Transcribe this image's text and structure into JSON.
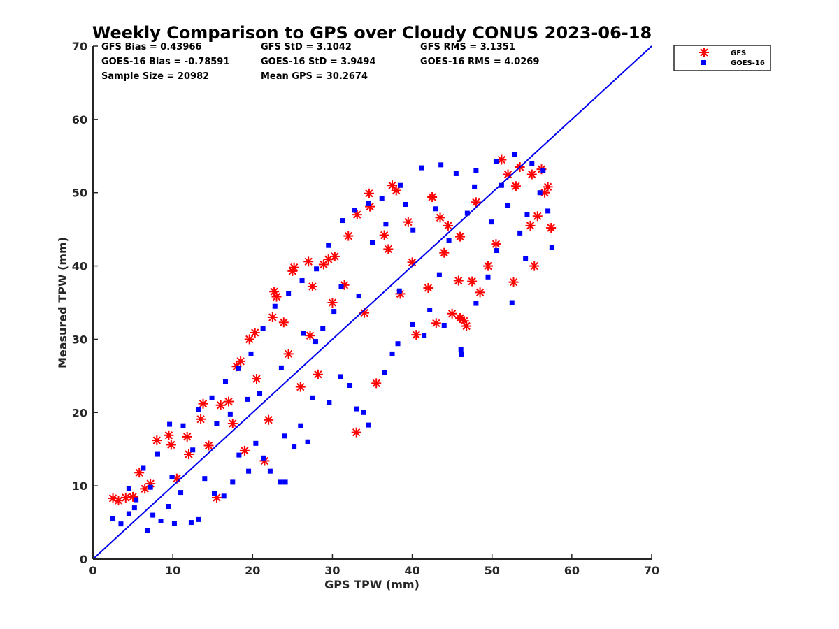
{
  "chart_data": {
    "type": "scatter",
    "title": "Weekly Comparison to GPS over Cloudy CONUS 2023-06-18",
    "xlabel": "GPS TPW (mm)",
    "ylabel": "Measured TPW (mm)",
    "xlim": [
      0,
      70
    ],
    "ylim": [
      0,
      70
    ],
    "x_ticks": [
      0,
      10,
      20,
      30,
      40,
      50,
      60,
      70
    ],
    "y_ticks": [
      0,
      10,
      20,
      30,
      40,
      50,
      60,
      70
    ],
    "grid": false,
    "legend_position": "outside-top-right",
    "reference_line": {
      "x": [
        0,
        70
      ],
      "y": [
        0,
        70
      ],
      "color": "#0000ee"
    },
    "stats": [
      [
        "GFS Bias = 0.43966",
        "GFS StD = 3.1042",
        "GFS RMS = 3.1351"
      ],
      [
        "GOES-16 Bias = -0.78591",
        "GOES-16 StD = 3.9494",
        "GOES-16 RMS = 4.0269"
      ],
      [
        "Sample Size = 20982",
        "Mean GPS = 30.2674",
        ""
      ]
    ],
    "series": [
      {
        "name": "GFS",
        "marker": "asterisk",
        "color": "#ff0000",
        "points": [
          [
            2.5,
            8.3
          ],
          [
            3.2,
            8.0
          ],
          [
            4.1,
            8.4
          ],
          [
            5.0,
            8.5
          ],
          [
            5.8,
            11.8
          ],
          [
            6.5,
            9.6
          ],
          [
            7.2,
            10.3
          ],
          [
            8.0,
            16.2
          ],
          [
            9.5,
            16.9
          ],
          [
            9.8,
            15.6
          ],
          [
            11.8,
            16.7
          ],
          [
            13.5,
            19.1
          ],
          [
            13.8,
            21.2
          ],
          [
            15.5,
            8.4
          ],
          [
            17.0,
            21.5
          ],
          [
            18.0,
            26.3
          ],
          [
            18.5,
            27.0
          ],
          [
            19.6,
            30.0
          ],
          [
            20.3,
            30.9
          ],
          [
            21.5,
            13.4
          ],
          [
            22.5,
            33.0
          ],
          [
            22.7,
            36.5
          ],
          [
            23.0,
            35.8
          ],
          [
            23.9,
            32.3
          ],
          [
            25.2,
            39.8
          ],
          [
            25.0,
            39.3
          ],
          [
            27.0,
            40.6
          ],
          [
            27.5,
            37.2
          ],
          [
            28.9,
            40.2
          ],
          [
            29.5,
            40.9
          ],
          [
            30.3,
            41.3
          ],
          [
            32.0,
            44.1
          ],
          [
            33.0,
            17.3
          ],
          [
            33.1,
            47.0
          ],
          [
            34.6,
            49.9
          ],
          [
            34.7,
            48.1
          ],
          [
            35.5,
            24.0
          ],
          [
            37.5,
            51.0
          ],
          [
            38.0,
            50.3
          ],
          [
            39.5,
            46.0
          ],
          [
            40.5,
            30.6
          ],
          [
            42.0,
            37.0
          ],
          [
            43.0,
            32.2
          ],
          [
            44.5,
            45.5
          ],
          [
            45.0,
            33.5
          ],
          [
            45.8,
            38.0
          ],
          [
            46.0,
            32.9
          ],
          [
            46.5,
            32.5
          ],
          [
            46.8,
            31.8
          ],
          [
            47.5,
            37.9
          ],
          [
            48.5,
            36.4
          ],
          [
            49.5,
            40.0
          ],
          [
            51.2,
            54.5
          ],
          [
            52.7,
            37.8
          ],
          [
            53.5,
            53.5
          ],
          [
            54.8,
            45.5
          ],
          [
            55.0,
            52.5
          ],
          [
            55.3,
            40.0
          ],
          [
            55.7,
            46.8
          ],
          [
            56.6,
            50.0
          ],
          [
            57.0,
            50.8
          ],
          [
            57.4,
            45.2
          ],
          [
            56.2,
            53.2
          ],
          [
            52.0,
            52.5
          ],
          [
            50.5,
            43.0
          ],
          [
            44.0,
            41.8
          ],
          [
            36.5,
            44.2
          ],
          [
            30.0,
            35.0
          ],
          [
            27.2,
            30.5
          ],
          [
            24.5,
            28.0
          ],
          [
            20.5,
            24.6
          ],
          [
            16.0,
            21.0
          ],
          [
            12.0,
            14.3
          ],
          [
            31.5,
            37.4
          ],
          [
            37.0,
            42.3
          ],
          [
            42.5,
            49.4
          ],
          [
            48.0,
            48.7
          ],
          [
            53.0,
            50.9
          ],
          [
            26.0,
            23.5
          ],
          [
            28.2,
            25.2
          ],
          [
            22.0,
            19.0
          ],
          [
            19.0,
            14.8
          ],
          [
            10.5,
            11.0
          ],
          [
            14.5,
            15.5
          ],
          [
            34.0,
            33.6
          ],
          [
            40.0,
            40.5
          ],
          [
            46.0,
            44.0
          ],
          [
            17.5,
            18.5
          ],
          [
            38.5,
            36.2
          ],
          [
            43.5,
            46.6
          ]
        ]
      },
      {
        "name": "GOES-16",
        "marker": "square",
        "color": "#0000ff",
        "points": [
          [
            2.5,
            5.5
          ],
          [
            3.5,
            4.8
          ],
          [
            4.5,
            6.2
          ],
          [
            5.2,
            7.0
          ],
          [
            6.8,
            3.9
          ],
          [
            7.5,
            6.0
          ],
          [
            8.5,
            5.2
          ],
          [
            9.5,
            7.2
          ],
          [
            10.2,
            4.9
          ],
          [
            11.0,
            9.1
          ],
          [
            12.3,
            5.0
          ],
          [
            13.2,
            5.4
          ],
          [
            14.0,
            11.0
          ],
          [
            15.2,
            9.0
          ],
          [
            16.4,
            8.6
          ],
          [
            17.5,
            10.5
          ],
          [
            18.3,
            14.2
          ],
          [
            19.5,
            12.0
          ],
          [
            20.4,
            15.8
          ],
          [
            21.4,
            13.8
          ],
          [
            22.2,
            12.0
          ],
          [
            23.5,
            10.5
          ],
          [
            24.0,
            16.8
          ],
          [
            25.2,
            15.3
          ],
          [
            26.0,
            18.2
          ],
          [
            26.9,
            16.0
          ],
          [
            27.5,
            22.0
          ],
          [
            29.6,
            21.4
          ],
          [
            31.0,
            24.9
          ],
          [
            32.2,
            23.7
          ],
          [
            33.0,
            20.5
          ],
          [
            33.9,
            20.0
          ],
          [
            34.5,
            18.3
          ],
          [
            36.5,
            25.5
          ],
          [
            37.5,
            28.0
          ],
          [
            38.2,
            29.4
          ],
          [
            40.0,
            32.0
          ],
          [
            41.5,
            30.5
          ],
          [
            42.2,
            34.0
          ],
          [
            44.0,
            31.9
          ],
          [
            46.2,
            27.9
          ],
          [
            46.1,
            28.6
          ],
          [
            48.0,
            34.9
          ],
          [
            49.5,
            38.5
          ],
          [
            50.6,
            42.1
          ],
          [
            52.5,
            35.0
          ],
          [
            53.5,
            44.5
          ],
          [
            54.2,
            41.0
          ],
          [
            55.0,
            54.0
          ],
          [
            56.0,
            50.0
          ],
          [
            57.0,
            47.5
          ],
          [
            57.5,
            42.5
          ],
          [
            56.4,
            53.0
          ],
          [
            52.8,
            55.2
          ],
          [
            50.5,
            54.3
          ],
          [
            48.0,
            53.0
          ],
          [
            45.5,
            52.6
          ],
          [
            43.6,
            53.8
          ],
          [
            41.2,
            53.4
          ],
          [
            38.5,
            51.0
          ],
          [
            36.2,
            49.2
          ],
          [
            34.5,
            48.5
          ],
          [
            32.8,
            47.6
          ],
          [
            31.3,
            46.2
          ],
          [
            29.5,
            42.8
          ],
          [
            28.0,
            39.6
          ],
          [
            26.2,
            38.0
          ],
          [
            24.5,
            36.2
          ],
          [
            22.8,
            34.5
          ],
          [
            21.3,
            31.5
          ],
          [
            19.8,
            28.0
          ],
          [
            18.2,
            26.0
          ],
          [
            16.6,
            24.2
          ],
          [
            14.9,
            22.0
          ],
          [
            13.2,
            20.4
          ],
          [
            11.3,
            18.2
          ],
          [
            9.6,
            18.4
          ],
          [
            8.1,
            14.3
          ],
          [
            6.3,
            12.4
          ],
          [
            4.5,
            9.6
          ],
          [
            24.1,
            10.5
          ],
          [
            31.1,
            37.2
          ],
          [
            26.4,
            30.8
          ],
          [
            36.7,
            45.7
          ],
          [
            40.1,
            44.9
          ],
          [
            43.4,
            38.8
          ],
          [
            38.4,
            36.6
          ],
          [
            28.8,
            31.5
          ],
          [
            20.9,
            22.6
          ],
          [
            17.2,
            19.8
          ],
          [
            46.9,
            47.2
          ],
          [
            49.9,
            46.0
          ],
          [
            35.0,
            43.2
          ],
          [
            33.3,
            35.9
          ],
          [
            30.2,
            33.8
          ],
          [
            27.9,
            29.7
          ],
          [
            23.6,
            26.1
          ],
          [
            19.4,
            21.8
          ],
          [
            15.5,
            18.5
          ],
          [
            12.5,
            14.9
          ],
          [
            9.9,
            11.2
          ],
          [
            7.2,
            9.8
          ],
          [
            5.4,
            8.1
          ],
          [
            44.6,
            43.5
          ],
          [
            52.0,
            48.3
          ],
          [
            54.4,
            47.0
          ],
          [
            51.2,
            51.0
          ],
          [
            47.8,
            50.8
          ],
          [
            42.9,
            47.8
          ],
          [
            39.2,
            48.4
          ]
        ]
      }
    ]
  }
}
